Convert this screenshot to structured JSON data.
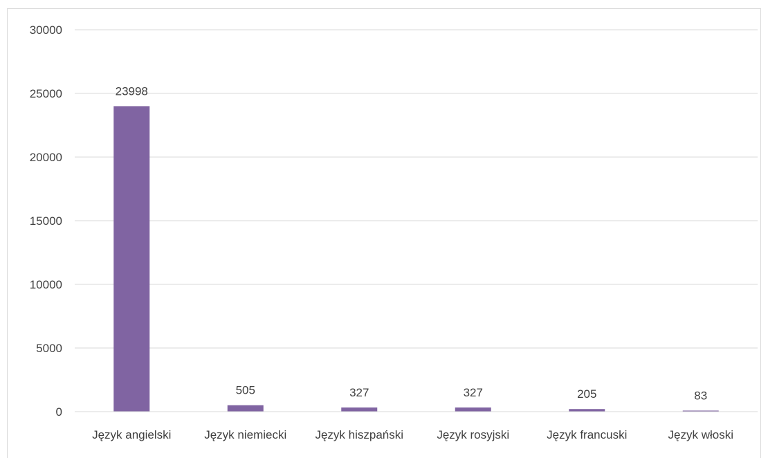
{
  "chart_data": {
    "type": "bar",
    "title": "",
    "xlabel": "",
    "ylabel": "",
    "categories": [
      "Język angielski",
      "Język niemiecki",
      "Język hiszpański",
      "Język rosyjski",
      "Język francuski",
      "Język włoski"
    ],
    "values": [
      23998,
      505,
      327,
      327,
      205,
      83
    ],
    "data_labels": [
      "23998",
      "505",
      "327",
      "327",
      "205",
      "83"
    ],
    "ylim": [
      0,
      30000
    ],
    "yticks": [
      0,
      5000,
      10000,
      15000,
      20000,
      25000,
      30000
    ],
    "ytick_labels": [
      "0",
      "5000",
      "10000",
      "15000",
      "20000",
      "25000",
      "30000"
    ],
    "grid": true,
    "legend": "none",
    "bar_color": "#8064a2"
  }
}
